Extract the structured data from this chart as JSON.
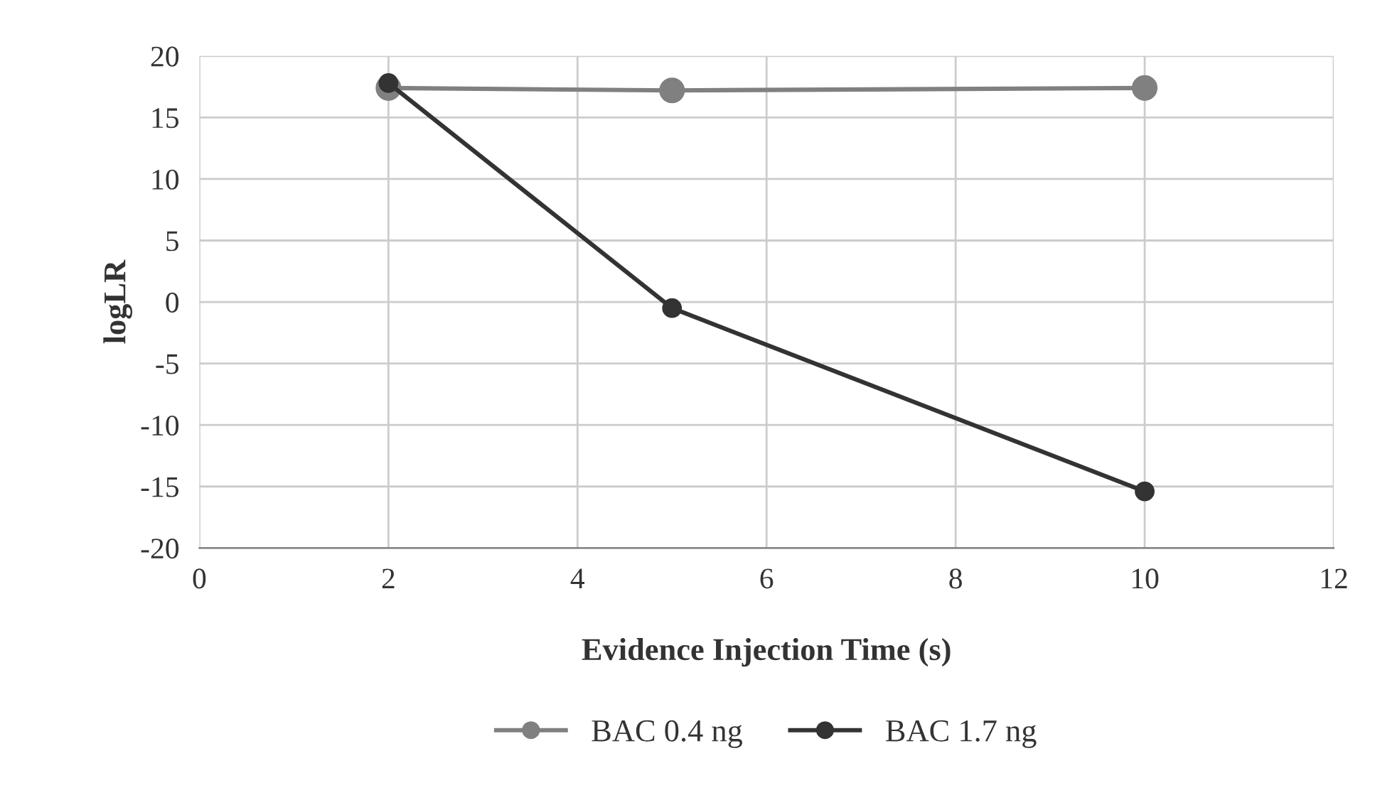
{
  "chart_data": {
    "type": "line",
    "xlabel": "Evidence Injection Time (s)",
    "ylabel": "logLR",
    "x": [
      2,
      5,
      10
    ],
    "series": [
      {
        "name": "BAC 0.4 ng",
        "color": "#808080",
        "values": [
          17.4,
          17.2,
          17.4
        ]
      },
      {
        "name": "BAC 1.7 ng",
        "color": "#333333",
        "values": [
          17.8,
          -0.5,
          -15.4
        ]
      }
    ],
    "xlim": [
      0,
      12
    ],
    "xticks": [
      0,
      2,
      4,
      6,
      8,
      10,
      12
    ],
    "ylim": [
      -20,
      20
    ],
    "yticks": [
      -20,
      -15,
      -10,
      -5,
      0,
      5,
      10,
      15,
      20
    ],
    "grid": true,
    "legend": "bottom",
    "marker": "circle",
    "line_style": "solid"
  }
}
